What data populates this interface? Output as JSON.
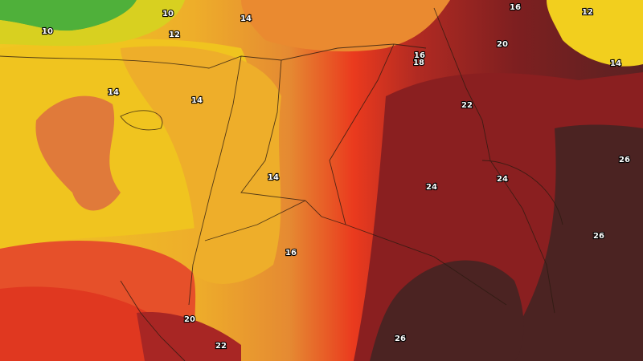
{
  "map": {
    "type": "temperature-contour-map",
    "colors": {
      "green": "#4fb03a",
      "yellow": "#f2cf1e",
      "light_orange": "#efb22a",
      "orange": "#e48a30",
      "salmon": "#e06a3c",
      "red": "#ea3a1e",
      "dark_red": "#a02323",
      "maroon": "#7e1f20",
      "darkest": "#4b2322"
    },
    "labels": [
      "10",
      "10",
      "12",
      "14",
      "16",
      "12",
      "20",
      "16",
      "18",
      "14",
      "14",
      "14",
      "22",
      "14",
      "24",
      "24",
      "26",
      "26",
      "16",
      "20",
      "22",
      "26"
    ]
  }
}
